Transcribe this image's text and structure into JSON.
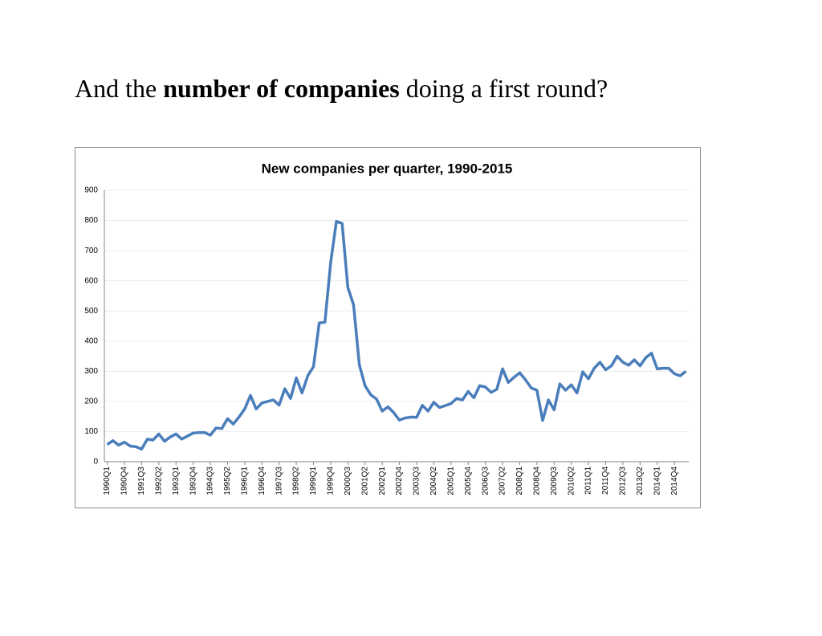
{
  "heading": [
    "And the ",
    "number of companies",
    " doing a first round?"
  ],
  "chart_data": {
    "type": "line",
    "title": "New companies per quarter, 1990-2015",
    "categories": [
      "1990Q1",
      null,
      null,
      "1990Q4",
      null,
      null,
      "1991Q3",
      null,
      null,
      "1992Q2",
      null,
      null,
      "1993Q1",
      null,
      null,
      "1993Q4",
      null,
      null,
      "1994Q3",
      null,
      null,
      "1995Q2",
      null,
      null,
      "1996Q1",
      null,
      null,
      "1996Q4",
      null,
      null,
      "1997Q3",
      null,
      null,
      "1998Q2",
      null,
      null,
      "1999Q1",
      null,
      null,
      "1999Q4",
      null,
      null,
      "2000Q3",
      null,
      null,
      "2001Q2",
      null,
      null,
      "2002Q1",
      null,
      null,
      "2002Q4",
      null,
      null,
      "2003Q3",
      null,
      null,
      "2004Q2",
      null,
      null,
      "2005Q1",
      null,
      null,
      "2005Q4",
      null,
      null,
      "2006Q3",
      null,
      null,
      "2007Q2",
      null,
      null,
      "2008Q1",
      null,
      null,
      "2008Q4",
      null,
      null,
      "2009Q3",
      null,
      null,
      "2010Q2",
      null,
      null,
      "2011Q1",
      null,
      null,
      "2011Q4",
      null,
      null,
      "2012Q3",
      null,
      null,
      "2013Q2",
      null,
      null,
      "2014Q1",
      null,
      null,
      "2014Q4",
      null,
      null
    ],
    "values": [
      57,
      70,
      55,
      65,
      52,
      50,
      42,
      75,
      72,
      92,
      68,
      82,
      92,
      75,
      85,
      95,
      97,
      97,
      88,
      112,
      110,
      143,
      125,
      148,
      175,
      220,
      175,
      195,
      200,
      205,
      188,
      242,
      210,
      278,
      228,
      285,
      315,
      460,
      463,
      660,
      797,
      790,
      578,
      520,
      322,
      252,
      222,
      208,
      168,
      182,
      163,
      138,
      145,
      148,
      147,
      187,
      168,
      197,
      180,
      186,
      193,
      210,
      205,
      233,
      212,
      252,
      248,
      230,
      240,
      308,
      263,
      280,
      295,
      272,
      245,
      237,
      137,
      205,
      172,
      258,
      237,
      255,
      228,
      298,
      275,
      310,
      330,
      305,
      318,
      350,
      330,
      320,
      338,
      318,
      345,
      360,
      308,
      310,
      310,
      292,
      285,
      300
    ],
    "color": "#4a7ebb",
    "ylim": [
      0,
      900
    ],
    "yticks": [
      0,
      100,
      200,
      300,
      400,
      500,
      600,
      700,
      800,
      900
    ],
    "grid": true
  }
}
